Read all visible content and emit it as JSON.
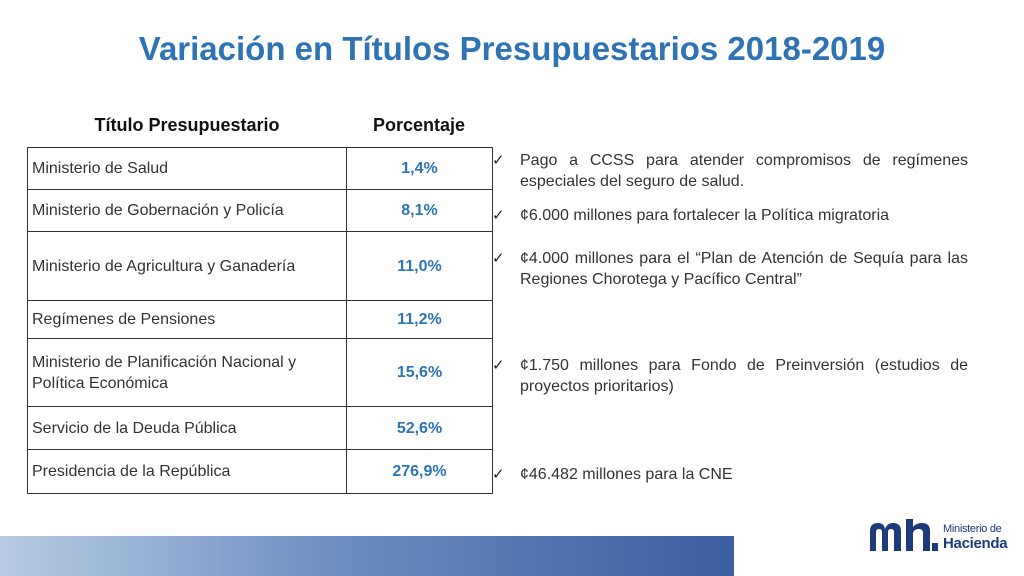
{
  "title": "Variación en Títulos Presupuestarios 2018-2019",
  "table": {
    "headers": {
      "title": "Título Presupuestario",
      "percent": "Porcentaje"
    },
    "rows": [
      {
        "name": "Ministerio de Salud",
        "percent": "1,4%"
      },
      {
        "name": "Ministerio de Gobernación y Policía",
        "percent": "8,1%"
      },
      {
        "name": "Ministerio de Agricultura y Ganadería",
        "percent": "11,0%"
      },
      {
        "name": "Regímenes de Pensiones",
        "percent": "11,2%"
      },
      {
        "name": "Ministerio de Planificación Nacional y Política Económica",
        "percent": "15,6%"
      },
      {
        "name": "Servicio de la Deuda Pública",
        "percent": "52,6%"
      },
      {
        "name": "Presidencia de la República",
        "percent": "276,9%"
      }
    ]
  },
  "notes": [
    {
      "check": "✓",
      "text": "Pago a CCSS para atender compromisos de regímenes especiales del seguro de salud."
    },
    {
      "check": "✓",
      "text": "¢6.000 millones para fortalecer la Política migratoria"
    },
    {
      "check": "✓",
      "text": "¢4.000 millones para el “Plan de Atención de Sequía para las Regiones Chorotega y Pacífico Central”"
    },
    {
      "check": "✓",
      "text": "¢1.750 millones para Fondo de Preinversión (estudios de proyectos prioritarios)"
    },
    {
      "check": "✓",
      "text": "¢46.482 millones para la CNE"
    }
  ],
  "logo": {
    "line1": "Ministerio de",
    "line2": "Hacienda"
  },
  "colors": {
    "title": "#2E74B5",
    "percent": "#2E74B5",
    "logo": "#1F3A7A"
  }
}
